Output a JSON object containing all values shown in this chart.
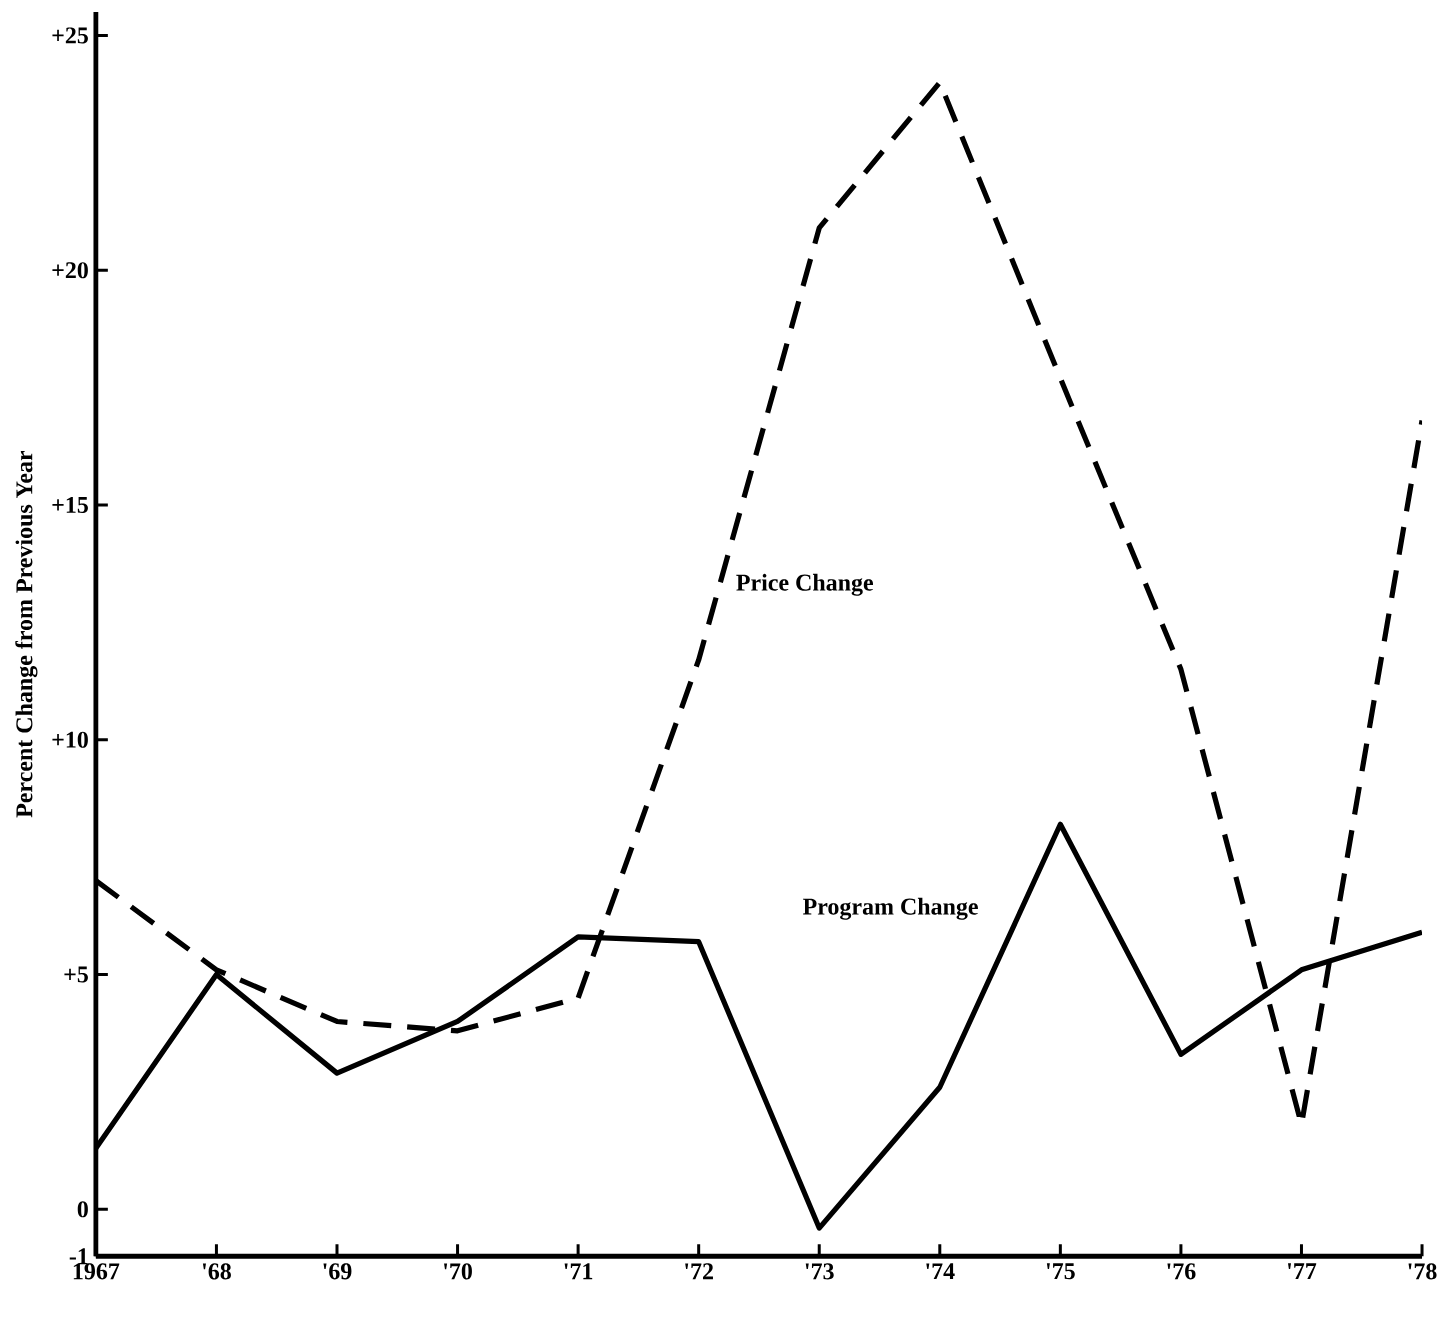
{
  "chart_data": {
    "type": "line",
    "ylabel": "Percent Change from Previous Year",
    "categories": [
      "1967",
      "'68",
      "'69",
      "'70",
      "'71",
      "'72",
      "'73",
      "'74",
      "'75",
      "'76",
      "'77",
      "'78"
    ],
    "ylim": [
      -1,
      25.5
    ],
    "yticks": [
      {
        "value": -1,
        "label": "-1"
      },
      {
        "value": 0,
        "label": "0"
      },
      {
        "value": 5,
        "label": "+5"
      },
      {
        "value": 10,
        "label": "+10"
      },
      {
        "value": 15,
        "label": "+15"
      },
      {
        "value": 20,
        "label": "+20"
      },
      {
        "value": 25,
        "label": "+25"
      }
    ],
    "series": [
      {
        "name": "Price Change",
        "color": "#000000",
        "line_style": "dashed",
        "values": [
          7.0,
          5.1,
          4.0,
          3.8,
          4.5,
          11.7,
          20.9,
          24.0,
          17.7,
          11.5,
          1.8,
          16.8
        ]
      },
      {
        "name": "Program Change",
        "color": "#000000",
        "line_style": "solid",
        "values": [
          1.3,
          5.0,
          2.9,
          4.0,
          5.8,
          5.7,
          -0.4,
          2.6,
          8.2,
          3.3,
          5.1,
          5.9
        ]
      }
    ],
    "grid": false,
    "legend": false,
    "marker": "none"
  }
}
